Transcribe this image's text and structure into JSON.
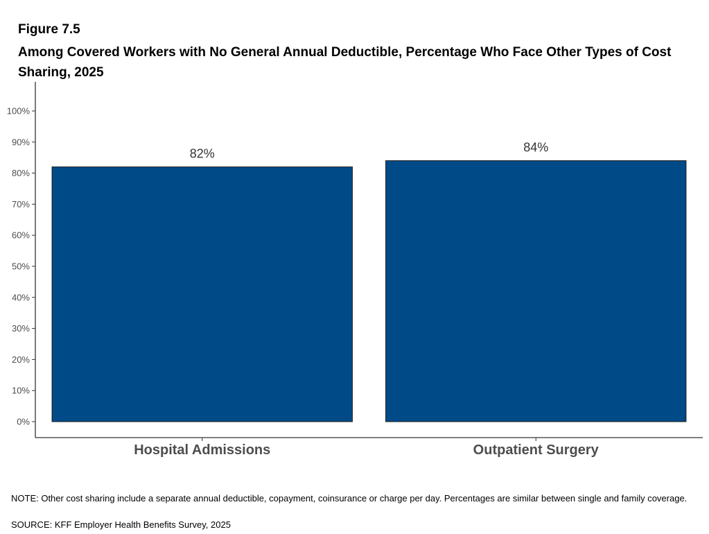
{
  "figure_label": "Figure 7.5",
  "chart_data": {
    "type": "bar",
    "title": "Among Covered Workers with No General Annual Deductible, Percentage Who Face Other Types of Cost Sharing, 2025",
    "categories": [
      "Hospital Admissions",
      "Outpatient Surgery"
    ],
    "values": [
      82,
      84
    ],
    "data_labels": [
      "82%",
      "84%"
    ],
    "ylim": [
      0,
      100
    ],
    "yticks": [
      0,
      10,
      20,
      30,
      40,
      50,
      60,
      70,
      80,
      90,
      100
    ],
    "ytick_labels": [
      "0%",
      "10%",
      "20%",
      "30%",
      "40%",
      "50%",
      "60%",
      "70%",
      "80%",
      "90%",
      "100%"
    ],
    "xlabel": "",
    "ylabel": "",
    "grid": false,
    "legend": "none",
    "colors": {
      "bar": "#004b87",
      "bar_outline": "#1a1a1a",
      "axis": "#333333",
      "label_text": "#4d4d4d"
    }
  },
  "footer": {
    "note": "NOTE: Other cost sharing include a separate annual deductible, copayment, coinsurance or charge per day. Percentages are similar between single and family coverage.",
    "source": "SOURCE: KFF Employer Health Benefits Survey, 2025"
  }
}
